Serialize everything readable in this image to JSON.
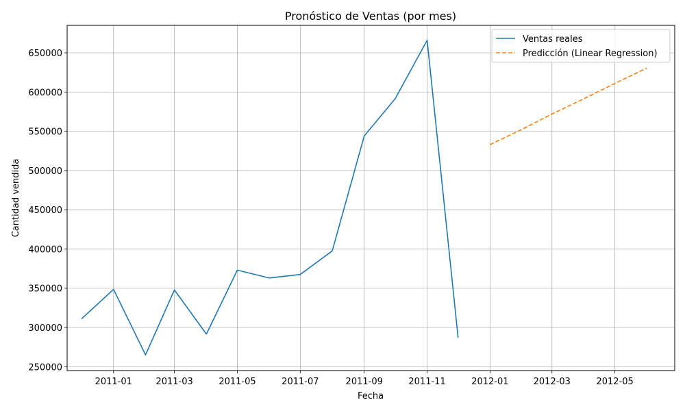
{
  "chart_data": {
    "type": "line",
    "title": "Pronóstico de Ventas (por mes)",
    "xlabel": "Fecha",
    "ylabel": "Cantidad vendida",
    "x_axis": {
      "type": "date",
      "range": [
        "2010-11-17",
        "2012-06-28"
      ],
      "ticks": [
        "2011-01",
        "2011-03",
        "2011-05",
        "2011-07",
        "2011-09",
        "2011-11",
        "2012-01",
        "2012-03",
        "2012-05"
      ]
    },
    "y_axis": {
      "range": [
        245000,
        685000
      ],
      "ticks": [
        250000,
        300000,
        350000,
        400000,
        450000,
        500000,
        550000,
        600000,
        650000
      ]
    },
    "grid": true,
    "legend": "top-right",
    "series": [
      {
        "name": "Ventas reales",
        "color": "#1f77b4",
        "style": "solid",
        "x": [
          "2010-12-01",
          "2011-01-01",
          "2011-02-01",
          "2011-03-01",
          "2011-04-01",
          "2011-05-01",
          "2011-06-01",
          "2011-07-01",
          "2011-08-01",
          "2011-09-01",
          "2011-10-01",
          "2011-11-01",
          "2011-12-01"
        ],
        "y": [
          311000,
          348500,
          265000,
          347800,
          291500,
          373000,
          363000,
          367500,
          397500,
          544000,
          591500,
          666000,
          287000
        ]
      },
      {
        "name": "Predicción (Linear Regression)",
        "color": "#ff7f0e",
        "style": "dashed",
        "x": [
          "2012-01-01",
          "2012-02-01",
          "2012-03-01",
          "2012-04-01",
          "2012-05-01",
          "2012-06-01"
        ],
        "y": [
          533000,
          552500,
          572000,
          591500,
          611000,
          630500
        ]
      }
    ]
  }
}
